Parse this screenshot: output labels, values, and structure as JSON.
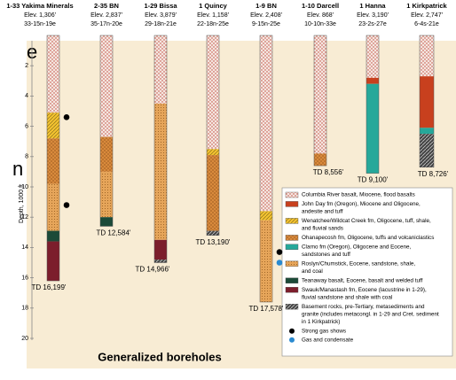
{
  "fragments": [
    "e",
    "n"
  ],
  "axis": {
    "label": "Depth, 1000 ft",
    "ylim": [
      0,
      20
    ],
    "yticks": [
      2,
      4,
      6,
      8,
      10,
      12,
      14,
      16,
      18,
      20
    ]
  },
  "caption": "Generalized boreholes",
  "units": [
    {
      "lines": [
        "Columbia River basalt, Miocene, flood basalts"
      ],
      "color": "#f4e6e0"
    },
    {
      "lines": [
        "John Day fm (Oregon), Miocene and Oligocene,",
        "andesite and tuff"
      ],
      "color": "#c8401e"
    },
    {
      "lines": [
        "Wenatchee/Wildcat Creek fm, Oligocene, tuff, shale,",
        "and fluvial sands"
      ],
      "color": "#f2c230"
    },
    {
      "lines": [
        "Ohanapecosh fm, Oligocene, tuffs and volcaniclastics"
      ],
      "color": "#d98a3c"
    },
    {
      "lines": [
        "Clarno fm (Oregon), Oligocene and Eocene,",
        "sandstones and tuff"
      ],
      "color": "#26a89a"
    },
    {
      "lines": [
        "Roslyn/Chumstick, Eocene, sandstone, shale,",
        "and coal"
      ],
      "color": "#e6a55a"
    },
    {
      "lines": [
        "Teanaway basalt, Eocene, basalt and welded tuff"
      ],
      "color": "#1c4a38"
    },
    {
      "lines": [
        "Swauk/Manastash fm, Eocene (lacustrine in 1-29),",
        "fluvial sandstone and shale with coal"
      ],
      "color": "#7c1e2c"
    },
    {
      "lines": [
        "Basement rocks, pre-Tertiary, metasediments and",
        "granite (includes metacongl. in 1-29 and Cret. sediment",
        "in 1 Kirkpatrick)"
      ],
      "color": "#444444"
    }
  ],
  "markers": [
    {
      "label": "Strong gas shows",
      "color": "#000000"
    },
    {
      "label": "Gas and condensate",
      "color": "#2a8ad0"
    }
  ],
  "boreholes": [
    {
      "name": "1-33 Yakima Minerals",
      "elev": "Elev. 1,306'",
      "loc": "33-15n-19e",
      "td": "TD 16,199'",
      "layers": [
        {
          "unit": 0,
          "top": 0,
          "bottom": 5.1
        },
        {
          "unit": 2,
          "top": 5.1,
          "bottom": 6.8
        },
        {
          "unit": 3,
          "top": 6.8,
          "bottom": 9.8
        },
        {
          "unit": 5,
          "top": 9.8,
          "bottom": 12.9
        },
        {
          "unit": 6,
          "top": 12.9,
          "bottom": 13.6
        },
        {
          "unit": 7,
          "top": 13.6,
          "bottom": 16.2
        }
      ],
      "shows": [
        {
          "marker": 0,
          "depth": 5.4
        },
        {
          "marker": 0,
          "depth": 11.2
        }
      ]
    },
    {
      "name": "2-35 BN",
      "elev": "Elev. 2,837'",
      "loc": "35-17n-20e",
      "td": "TD 12,584'",
      "layers": [
        {
          "unit": 0,
          "top": 0,
          "bottom": 6.7
        },
        {
          "unit": 3,
          "top": 6.7,
          "bottom": 9.0
        },
        {
          "unit": 5,
          "top": 9.0,
          "bottom": 12.0
        },
        {
          "unit": 6,
          "top": 12.0,
          "bottom": 12.6
        }
      ],
      "shows": []
    },
    {
      "name": "1-29 Bissa",
      "elev": "Elev. 3,879'",
      "loc": "29-18n-21e",
      "td": "TD 14,966'",
      "layers": [
        {
          "unit": 0,
          "top": 0,
          "bottom": 4.5
        },
        {
          "unit": 5,
          "top": 4.5,
          "bottom": 13.5
        },
        {
          "unit": 7,
          "top": 13.5,
          "bottom": 14.8
        },
        {
          "unit": 8,
          "top": 14.8,
          "bottom": 15.0
        }
      ],
      "shows": []
    },
    {
      "name": "1 Quincy",
      "elev": "Elev. 1,158'",
      "loc": "22-18n-25e",
      "td": "TD 13,190'",
      "layers": [
        {
          "unit": 0,
          "top": 0,
          "bottom": 7.5
        },
        {
          "unit": 2,
          "top": 7.5,
          "bottom": 7.9
        },
        {
          "unit": 3,
          "top": 7.9,
          "bottom": 12.9
        },
        {
          "unit": 8,
          "top": 12.9,
          "bottom": 13.2
        }
      ],
      "shows": []
    },
    {
      "name": "1-9 BN",
      "elev": "Elev. 2,408'",
      "loc": "9-15n-25e",
      "td": "TD 17,578'",
      "layers": [
        {
          "unit": 0,
          "top": 0,
          "bottom": 11.6
        },
        {
          "unit": 2,
          "top": 11.6,
          "bottom": 12.2
        },
        {
          "unit": 5,
          "top": 12.2,
          "bottom": 17.6
        }
      ],
      "shows": [
        {
          "marker": 0,
          "depth": 14.3
        },
        {
          "marker": 1,
          "depth": 15.0
        }
      ]
    },
    {
      "name": "1-10 Darcell",
      "elev": "Elev. 868'",
      "loc": "10-10n-33e",
      "td": "TD 8,556'",
      "layers": [
        {
          "unit": 0,
          "top": 0,
          "bottom": 7.8
        },
        {
          "unit": 3,
          "top": 7.8,
          "bottom": 8.6
        }
      ],
      "shows": []
    },
    {
      "name": "1 Hanna",
      "elev": "Elev. 3,190'",
      "loc": "23-2s-27e",
      "td": "TD 9,100'",
      "layers": [
        {
          "unit": 0,
          "top": 0,
          "bottom": 2.8
        },
        {
          "unit": 1,
          "top": 2.8,
          "bottom": 3.2
        },
        {
          "unit": 4,
          "top": 3.2,
          "bottom": 9.1
        }
      ],
      "shows": []
    },
    {
      "name": "1 Kirkpatrick",
      "elev": "Elev. 2,747'",
      "loc": "6-4s-21e",
      "td": "TD 8,726'",
      "layers": [
        {
          "unit": 0,
          "top": 0,
          "bottom": 2.7
        },
        {
          "unit": 1,
          "top": 2.7,
          "bottom": 6.1
        },
        {
          "unit": 4,
          "top": 6.1,
          "bottom": 6.5
        },
        {
          "unit": 8,
          "top": 6.5,
          "bottom": 8.7
        }
      ],
      "shows": []
    }
  ]
}
